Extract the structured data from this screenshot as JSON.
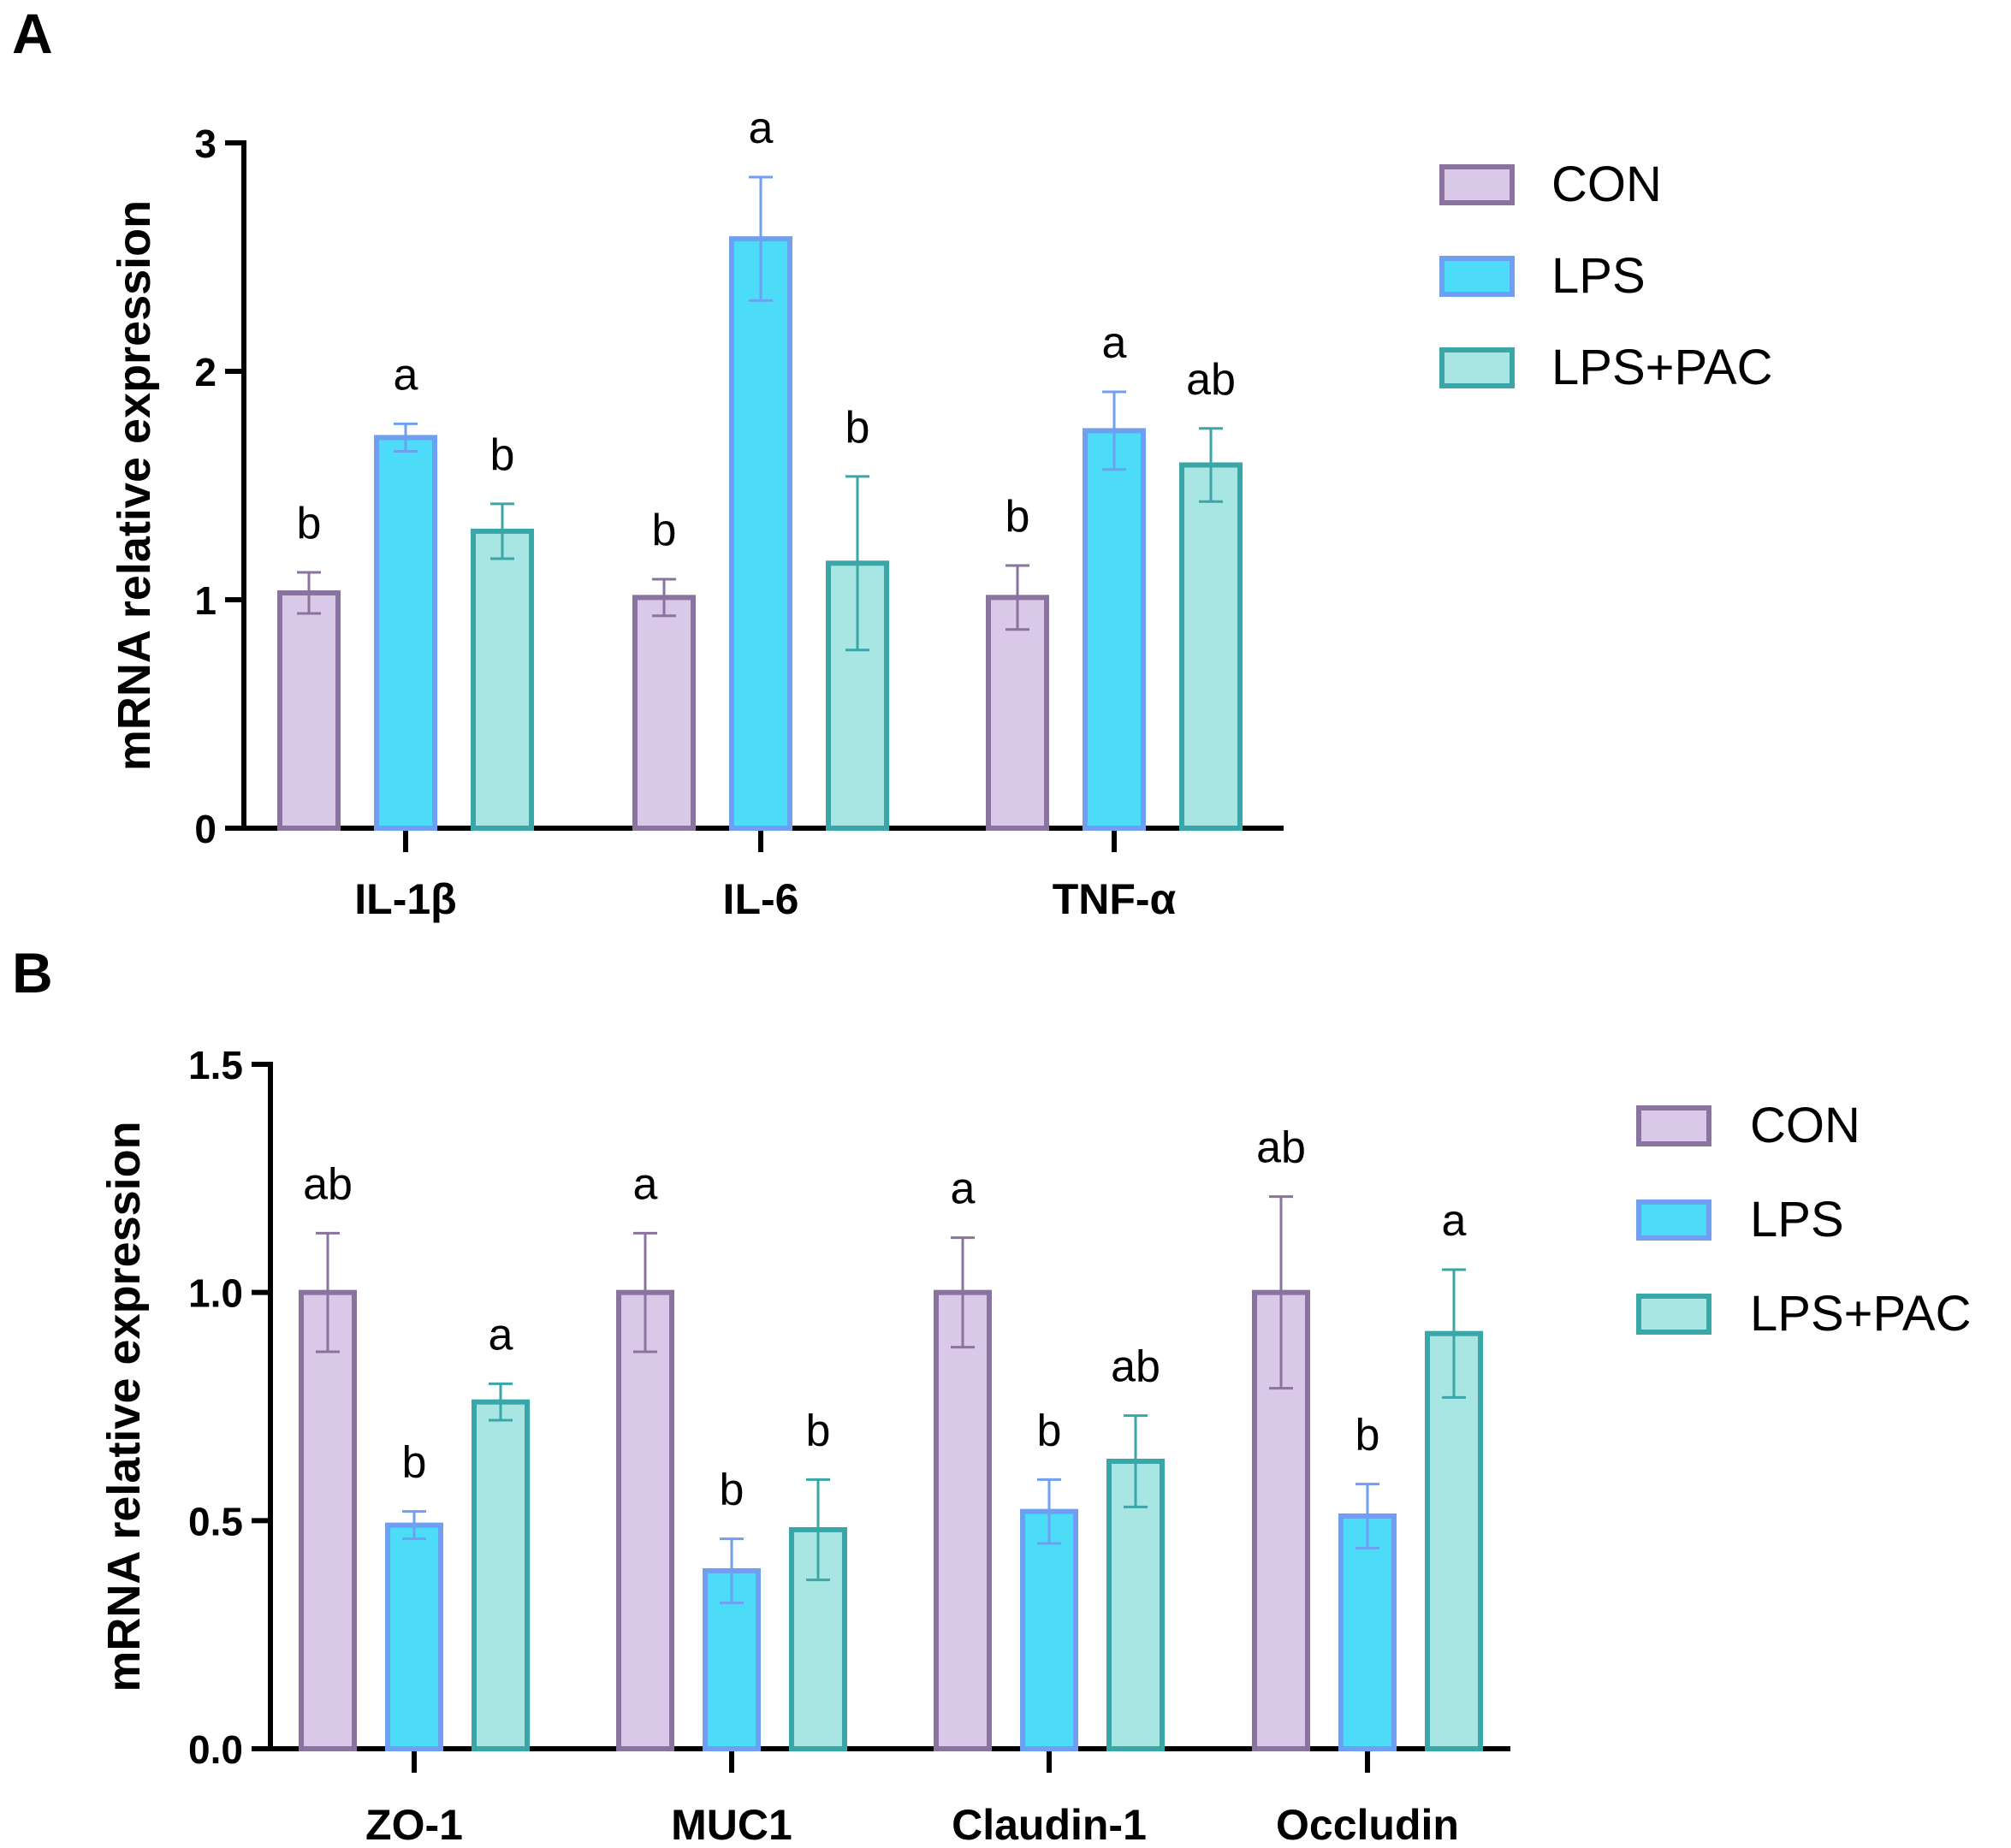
{
  "chart_data": [
    {
      "panel": "A",
      "type": "bar",
      "ylabel": "mRNA relative  expression",
      "ylim": [
        0,
        3
      ],
      "yticks": [
        "0",
        "1",
        "2",
        "3"
      ],
      "ytick_values": [
        0,
        1,
        2,
        3
      ],
      "categories": [
        "IL-1β",
        "IL-6",
        "TNF-α"
      ],
      "legend_position": "top-right",
      "series": [
        {
          "name": "CON",
          "fill": "#d9c8e8",
          "stroke": "#8a739f",
          "values": [
            1.03,
            1.01,
            1.01
          ],
          "errors": [
            0.09,
            0.08,
            0.14
          ],
          "letters": [
            "b",
            "b",
            "b"
          ]
        },
        {
          "name": "LPS",
          "fill": "#4ddcf8",
          "stroke": "#6f9ff0",
          "values": [
            1.71,
            2.58,
            1.74
          ],
          "errors": [
            0.06,
            0.27,
            0.17
          ],
          "letters": [
            "a",
            "a",
            "a"
          ]
        },
        {
          "name": "LPS+PAC",
          "fill": "#a8e6e4",
          "stroke": "#3aa6a8",
          "values": [
            1.3,
            1.16,
            1.59
          ],
          "errors": [
            0.12,
            0.38,
            0.16
          ],
          "letters": [
            "b",
            "b",
            "ab"
          ]
        }
      ]
    },
    {
      "panel": "B",
      "type": "bar",
      "ylabel": "mRNA relative  expression",
      "ylim": [
        0,
        1.5
      ],
      "yticks": [
        "0.0",
        "0.5",
        "1.0",
        "1.5"
      ],
      "ytick_values": [
        0,
        0.5,
        1.0,
        1.5
      ],
      "categories": [
        "ZO-1",
        "MUC1",
        "Claudin-1",
        "Occludin"
      ],
      "legend_position": "top-right",
      "series": [
        {
          "name": "CON",
          "fill": "#d9c8e8",
          "stroke": "#8a739f",
          "values": [
            1.0,
            1.0,
            1.0,
            1.0
          ],
          "errors": [
            0.13,
            0.13,
            0.12,
            0.21
          ],
          "letters": [
            "ab",
            "a",
            "a",
            "ab"
          ]
        },
        {
          "name": "LPS",
          "fill": "#4ddcf8",
          "stroke": "#6f9ff0",
          "values": [
            0.49,
            0.39,
            0.52,
            0.51
          ],
          "errors": [
            0.03,
            0.07,
            0.07,
            0.07
          ],
          "letters": [
            "b",
            "b",
            "b",
            "b"
          ]
        },
        {
          "name": "LPS+PAC",
          "fill": "#a8e6e4",
          "stroke": "#3aa6a8",
          "values": [
            0.76,
            0.48,
            0.63,
            0.91
          ],
          "errors": [
            0.04,
            0.11,
            0.1,
            0.14
          ],
          "letters": [
            "a",
            "b",
            "ab",
            "a"
          ]
        }
      ]
    }
  ]
}
